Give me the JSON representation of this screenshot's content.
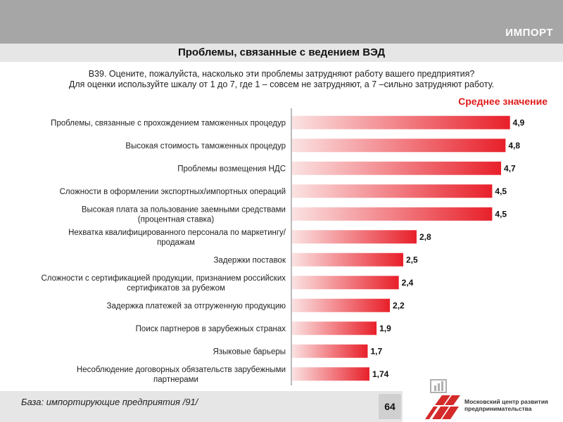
{
  "header": {
    "section_label": "ИМПОРТ",
    "title": "Проблемы, связанные с ведением ВЭД"
  },
  "question": {
    "line1": "B39. Оцените, пожалуйста, насколько эти проблемы затрудняют работу вашего предприятия?",
    "line2": "Для оценки используйте шкалу от 1 до 7, где 1 – совсем не затрудняют, а 7 –сильно затрудняют работу."
  },
  "footer": {
    "base": "База: импортирующие предприятия /91/",
    "page_number": "64"
  },
  "logo": {
    "org_line1": "Московский центр развития",
    "org_line2": "предпринимательства"
  },
  "colors": {
    "bar_light": "#fbe2e2",
    "bar_dark": "#e8202a",
    "legend": "#e01b1b"
  },
  "chart_data": {
    "type": "bar",
    "orientation": "horizontal",
    "legend": "Среднее значение",
    "legend_position": "top-right",
    "xlim": [
      0,
      5
    ],
    "grid": false,
    "categories": [
      [
        "Проблемы, связанные с прохождением таможенных процедур"
      ],
      [
        "Высокая стоимость таможенных процедур"
      ],
      [
        "Проблемы возмещения НДС"
      ],
      [
        "Сложности в оформлении экспортных/импортных операций"
      ],
      [
        "Высокая плата за пользование заемными средствами",
        "(процентная ставка)"
      ],
      [
        "Нехватка квалифицированного персонала по маркетингу/",
        "продажам"
      ],
      [
        "Задержки поставок"
      ],
      [
        "Сложности с сертификацией продукции, признанием российских",
        "сертификатов за рубежом"
      ],
      [
        "Задержка платежей за отгруженную продукцию"
      ],
      [
        "Поиск партнеров в зарубежных странах"
      ],
      [
        "Языковые барьеры"
      ],
      [
        "Несоблюдение договорных обязательств зарубежными",
        "партнерами"
      ]
    ],
    "values": [
      4.9,
      4.8,
      4.7,
      4.5,
      4.5,
      2.8,
      2.5,
      2.4,
      2.2,
      1.9,
      1.7,
      1.74
    ],
    "value_labels": [
      "4,9",
      "4,8",
      "4,7",
      "4,5",
      "4,5",
      "2,8",
      "2,5",
      "2,4",
      "2,2",
      "1,9",
      "1,7",
      "1,74"
    ]
  }
}
